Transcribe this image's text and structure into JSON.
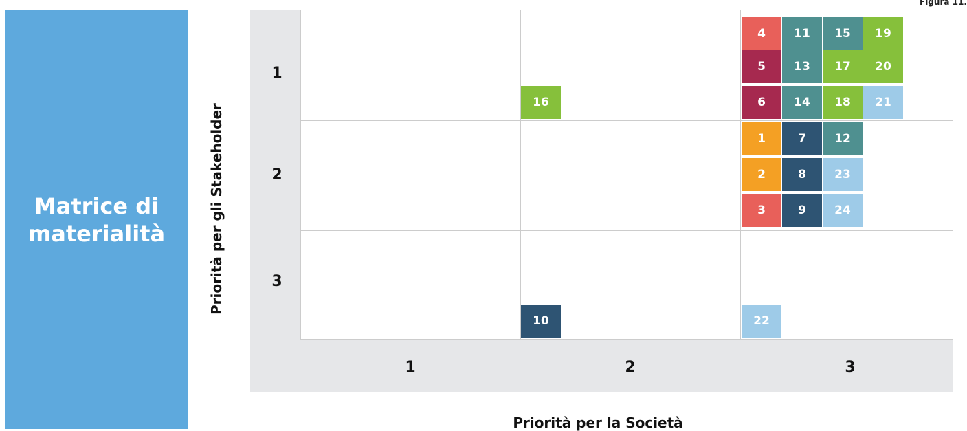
{
  "figure_label": "Figura 11.",
  "side_title": "Matrice di materialità",
  "y_axis_label": "Priorità per gli Stakeholder",
  "x_axis_label": "Priorità per la Società",
  "row_labels": [
    "1",
    "2",
    "3"
  ],
  "column_labels": [
    "1",
    "2",
    "3"
  ],
  "tiles": [
    {
      "label": "4",
      "color": "#e8605a"
    },
    {
      "label": "11",
      "color": "#4f9090"
    },
    {
      "label": "15",
      "color": "#4f9090"
    },
    {
      "label": "19",
      "color": "#86c03b"
    },
    {
      "label": "5",
      "color": "#a6294f"
    },
    {
      "label": "13",
      "color": "#4f9090"
    },
    {
      "label": "17",
      "color": "#86c03b"
    },
    {
      "label": "20",
      "color": "#86c03b"
    },
    {
      "label": "16",
      "color": "#86c03b"
    },
    {
      "label": "6",
      "color": "#a6294f"
    },
    {
      "label": "14",
      "color": "#4f9090"
    },
    {
      "label": "18",
      "color": "#86c03b"
    },
    {
      "label": "21",
      "color": "#9ecbe8"
    },
    {
      "label": "1",
      "color": "#f4a024"
    },
    {
      "label": "7",
      "color": "#2e5473"
    },
    {
      "label": "12",
      "color": "#4f9090"
    },
    {
      "label": "2",
      "color": "#f4a024"
    },
    {
      "label": "8",
      "color": "#2e5473"
    },
    {
      "label": "23",
      "color": "#9ecbe8"
    },
    {
      "label": "3",
      "color": "#e8605a"
    },
    {
      "label": "9",
      "color": "#2e5473"
    },
    {
      "label": "24",
      "color": "#9ecbe8"
    },
    {
      "label": "10",
      "color": "#2e5473"
    },
    {
      "label": "22",
      "color": "#9ecbe8"
    }
  ]
}
